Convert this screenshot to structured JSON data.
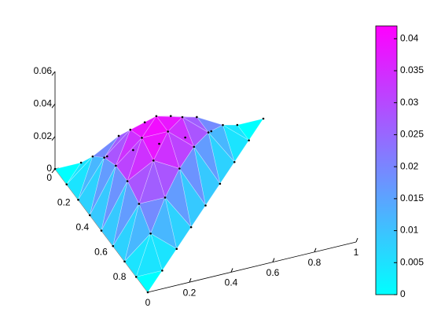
{
  "chart_data": {
    "type": "trisurf",
    "x": [
      0,
      0,
      0,
      0,
      0,
      0,
      0,
      0,
      0,
      0.125,
      0.125,
      0.125,
      0.125,
      0.125,
      0.125,
      0.125,
      0.125,
      0.25,
      0.25,
      0.25,
      0.25,
      0.25,
      0.25,
      0.25,
      0.375,
      0.375,
      0.375,
      0.375,
      0.375,
      0.375,
      0.5,
      0.5,
      0.5,
      0.5,
      0.5,
      0.625,
      0.625,
      0.625,
      0.625,
      0.75,
      0.75,
      0.75,
      0.875,
      0.875,
      1
    ],
    "y": [
      0,
      0.125,
      0.25,
      0.375,
      0.5,
      0.625,
      0.75,
      0.875,
      1,
      0,
      0.125,
      0.25,
      0.375,
      0.5,
      0.625,
      0.75,
      0.875,
      0,
      0.125,
      0.25,
      0.375,
      0.5,
      0.625,
      0.75,
      0,
      0.125,
      0.25,
      0.375,
      0.5,
      0.625,
      0,
      0.125,
      0.25,
      0.375,
      0.5,
      0,
      0.125,
      0.25,
      0.375,
      0,
      0.125,
      0.25,
      0,
      0.125,
      0
    ],
    "z": [
      0,
      0,
      0,
      0,
      0,
      0,
      0,
      0,
      0,
      0,
      0.0133,
      0.0221,
      0.0266,
      0.0266,
      0.0221,
      0.0133,
      0,
      0,
      0.0221,
      0.0354,
      0.0399,
      0.0354,
      0.0221,
      0,
      0,
      0.0266,
      0.0399,
      0.0399,
      0.0266,
      0,
      0,
      0.0266,
      0.0354,
      0.0266,
      0,
      0,
      0.0221,
      0.0221,
      0,
      0,
      0.0133,
      0,
      0,
      0,
      0
    ],
    "xlim": [
      0,
      1
    ],
    "xticks": [
      0,
      0.2,
      0.4,
      0.6,
      0.8,
      1
    ],
    "ylim": [
      0,
      1
    ],
    "yticks": [
      0,
      0.2,
      0.4,
      0.6,
      0.8
    ],
    "zlim": [
      0,
      0.06
    ],
    "zticks": [
      0,
      0.02,
      0.04,
      0.06
    ],
    "colormap": [
      "#00ffff",
      "#ff00ff"
    ],
    "clim": [
      0,
      0.042
    ],
    "cticks": [
      0,
      0.005,
      0.01,
      0.015,
      0.02,
      0.025,
      0.03,
      0.035,
      0.04
    ]
  }
}
